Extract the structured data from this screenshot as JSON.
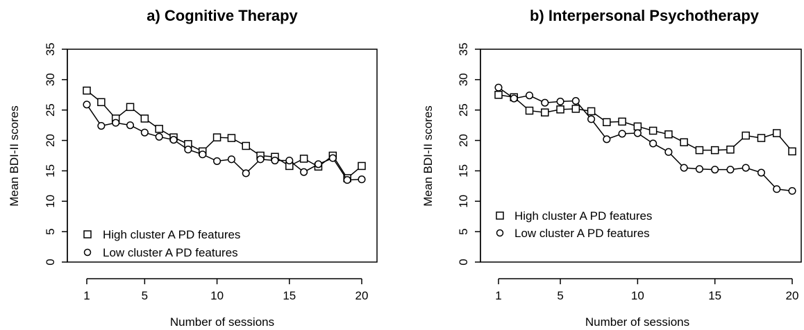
{
  "chart_data": [
    {
      "type": "line",
      "title": "a) Cognitive Therapy",
      "xlabel": "Number of sessions",
      "ylabel": "Mean BDI-II scores",
      "xlim": [
        1,
        20
      ],
      "ylim": [
        0,
        35
      ],
      "x_ticks": [
        1,
        5,
        10,
        15,
        20
      ],
      "y_ticks": [
        0,
        5,
        10,
        15,
        20,
        25,
        30,
        35
      ],
      "grid": false,
      "legend_position": "bottom-left",
      "x": [
        1,
        2,
        3,
        4,
        5,
        6,
        7,
        8,
        9,
        10,
        11,
        12,
        13,
        14,
        15,
        16,
        17,
        18,
        19,
        20
      ],
      "series": [
        {
          "name": "High cluster A PD features",
          "marker": "square",
          "values": [
            28.2,
            26.3,
            23.6,
            25.5,
            23.6,
            21.9,
            20.5,
            19.4,
            18.2,
            20.5,
            20.4,
            19.1,
            17.5,
            17.3,
            15.8,
            17.0,
            15.7,
            17.5,
            13.8,
            15.8
          ]
        },
        {
          "name": "Low cluster A PD features",
          "marker": "circle",
          "values": [
            25.9,
            22.4,
            22.9,
            22.5,
            21.3,
            20.6,
            20.1,
            18.5,
            17.7,
            16.6,
            16.9,
            14.6,
            16.9,
            16.7,
            16.7,
            14.8,
            16.1,
            17.1,
            13.5,
            13.6
          ]
        }
      ]
    },
    {
      "type": "line",
      "title": "b) Interpersonal Psychotherapy",
      "xlabel": "Number of sessions",
      "ylabel": "Mean BDI-II scores",
      "xlim": [
        1,
        20
      ],
      "ylim": [
        0,
        35
      ],
      "x_ticks": [
        1,
        5,
        10,
        15,
        20
      ],
      "y_ticks": [
        0,
        5,
        10,
        15,
        20,
        25,
        30,
        35
      ],
      "grid": false,
      "legend_position": "bottom-left",
      "x": [
        1,
        2,
        3,
        4,
        5,
        6,
        7,
        8,
        9,
        10,
        11,
        12,
        13,
        14,
        15,
        16,
        17,
        18,
        19,
        20
      ],
      "series": [
        {
          "name": "High cluster A PD features",
          "marker": "square",
          "values": [
            27.5,
            27.1,
            24.9,
            24.6,
            25.1,
            25.2,
            24.8,
            23.0,
            23.1,
            22.3,
            21.6,
            21.0,
            19.7,
            18.4,
            18.4,
            18.5,
            20.8,
            20.4,
            21.2,
            18.2
          ]
        },
        {
          "name": "Low cluster A PD features",
          "marker": "circle",
          "values": [
            28.7,
            26.9,
            27.4,
            26.2,
            26.4,
            26.5,
            23.5,
            20.2,
            21.1,
            21.2,
            19.5,
            18.1,
            15.5,
            15.3,
            15.2,
            15.2,
            15.5,
            14.7,
            12.0,
            11.7
          ]
        }
      ]
    }
  ]
}
